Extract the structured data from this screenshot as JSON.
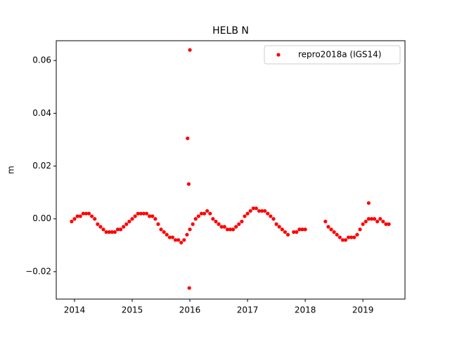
{
  "chart_data": {
    "type": "scatter",
    "title": "HELB N",
    "ylabel": "m",
    "series": [
      {
        "name": "repro2018a (IGS14)",
        "color": "#ff0000",
        "x": [
          2013.95,
          2014.0,
          2014.05,
          2014.1,
          2014.15,
          2014.2,
          2014.25,
          2014.3,
          2014.35,
          2014.4,
          2014.45,
          2014.5,
          2014.55,
          2014.6,
          2014.65,
          2014.7,
          2014.75,
          2014.8,
          2014.85,
          2014.9,
          2014.95,
          2015.0,
          2015.05,
          2015.1,
          2015.15,
          2015.2,
          2015.25,
          2015.3,
          2015.35,
          2015.4,
          2015.45,
          2015.5,
          2015.55,
          2015.6,
          2015.65,
          2015.7,
          2015.75,
          2015.8,
          2015.85,
          2015.9,
          2015.95,
          2016.0,
          2016.05,
          2016.1,
          2016.15,
          2016.2,
          2016.25,
          2016.3,
          2016.35,
          2016.4,
          2016.45,
          2016.5,
          2016.55,
          2016.6,
          2016.65,
          2016.7,
          2016.75,
          2016.8,
          2016.85,
          2016.9,
          2016.95,
          2017.0,
          2017.05,
          2017.1,
          2017.15,
          2017.2,
          2017.25,
          2017.3,
          2017.35,
          2017.4,
          2017.45,
          2017.5,
          2017.55,
          2017.6,
          2017.65,
          2017.7,
          2017.8,
          2017.85,
          2017.9,
          2017.95,
          2018.0,
          2018.35,
          2018.4,
          2018.45,
          2018.5,
          2018.55,
          2018.6,
          2018.65,
          2018.7,
          2018.75,
          2018.8,
          2018.85,
          2018.9,
          2018.95,
          2019.0,
          2019.05,
          2019.1,
          2019.15,
          2019.2,
          2019.25,
          2019.3,
          2019.35,
          2019.4,
          2019.45,
          2016.0,
          2015.96,
          2015.98,
          2015.99,
          2019.1
        ],
        "values": [
          -0.001,
          0.0,
          0.001,
          0.001,
          0.002,
          0.002,
          0.002,
          0.001,
          0.0,
          -0.002,
          -0.003,
          -0.004,
          -0.005,
          -0.005,
          -0.005,
          -0.005,
          -0.004,
          -0.004,
          -0.003,
          -0.002,
          -0.001,
          0.0,
          0.001,
          0.002,
          0.002,
          0.002,
          0.002,
          0.001,
          0.001,
          0.0,
          -0.002,
          -0.004,
          -0.005,
          -0.006,
          -0.007,
          -0.007,
          -0.008,
          -0.008,
          -0.009,
          -0.008,
          -0.006,
          -0.004,
          -0.002,
          0.0,
          0.001,
          0.002,
          0.002,
          0.003,
          0.002,
          0.0,
          -0.001,
          -0.002,
          -0.003,
          -0.003,
          -0.004,
          -0.004,
          -0.004,
          -0.003,
          -0.002,
          -0.001,
          0.001,
          0.002,
          0.003,
          0.004,
          0.004,
          0.003,
          0.003,
          0.003,
          0.002,
          0.001,
          0.0,
          -0.002,
          -0.003,
          -0.004,
          -0.005,
          -0.006,
          -0.005,
          -0.005,
          -0.004,
          -0.004,
          -0.004,
          -0.001,
          -0.003,
          -0.004,
          -0.005,
          -0.006,
          -0.007,
          -0.008,
          -0.008,
          -0.007,
          -0.007,
          -0.007,
          -0.006,
          -0.004,
          -0.002,
          -0.001,
          0.0,
          0.0,
          0.0,
          -0.001,
          0.0,
          -0.001,
          -0.002,
          -0.002,
          0.064,
          0.0305,
          0.0132,
          -0.0262,
          0.006
        ]
      }
    ],
    "xlim": [
      2013.683,
      2019.73
    ],
    "xticks": [
      2014,
      2015,
      2016,
      2017,
      2018,
      2019
    ],
    "ylim": [
      -0.0304,
      0.0675
    ],
    "yticks": [
      {
        "value": -0.02,
        "label": "−0.02"
      },
      {
        "value": 0.0,
        "label": "0.00"
      },
      {
        "value": 0.02,
        "label": "0.02"
      },
      {
        "value": 0.04,
        "label": "0.04"
      },
      {
        "value": 0.06,
        "label": "0.06"
      }
    ],
    "legend": "upper right"
  }
}
